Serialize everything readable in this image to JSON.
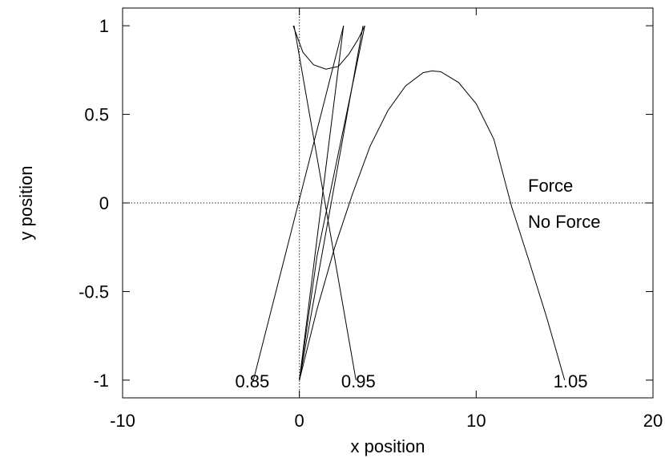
{
  "chart_data": {
    "type": "line",
    "xlabel": "x position",
    "ylabel": "y position",
    "xlim": [
      -10,
      20
    ],
    "ylim": [
      -1.1,
      1.1
    ],
    "x_ticks": [
      -10,
      0,
      10,
      20
    ],
    "x_tick_labels": [
      "-10",
      "0",
      "10",
      "20"
    ],
    "y_ticks": [
      -1,
      -0.5,
      0,
      0.5,
      1
    ],
    "y_tick_labels": [
      "-1",
      "-0.5",
      "0",
      "0.5",
      "1"
    ],
    "zero_axes": true,
    "grid": false,
    "legend": {
      "placement": "right",
      "entries": [
        "Force",
        "No Force"
      ]
    },
    "annotations": [
      {
        "text": "0.85",
        "x": -3.0,
        "y": -1.0
      },
      {
        "text": "0.95",
        "x": 3.0,
        "y": -1.0
      },
      {
        "text": "1.05",
        "x": 15.0,
        "y": -1.0
      }
    ],
    "series": [
      {
        "x": [
          0,
          3.6
        ],
        "y": [
          -1,
          1
        ]
      },
      {
        "x": [
          0,
          2.5
        ],
        "y": [
          -1,
          1
        ]
      },
      {
        "x": [
          -0.3,
          3.2
        ],
        "y": [
          1,
          -1
        ]
      },
      {
        "x": [
          -2.6,
          2.5
        ],
        "y": [
          -1,
          1
        ]
      },
      {
        "x": [
          0,
          1.0,
          3.7
        ],
        "y": [
          -1,
          -0.3,
          1
        ]
      },
      {
        "x": [
          -0.35,
          0.2,
          0.8,
          1.5,
          2.2,
          2.8,
          3.3,
          3.7
        ],
        "y": [
          1,
          0.85,
          0.78,
          0.755,
          0.77,
          0.84,
          0.92,
          1
        ]
      },
      {
        "x": [
          0,
          1,
          2,
          3,
          4,
          5,
          6,
          7,
          7.5,
          8,
          9,
          10,
          11,
          12,
          13,
          14,
          15
        ],
        "y": [
          -1,
          -0.6,
          -0.25,
          0.05,
          0.32,
          0.52,
          0.66,
          0.735,
          0.745,
          0.74,
          0.68,
          0.56,
          0.36,
          -0.02,
          -0.33,
          -0.65,
          -1
        ]
      }
    ]
  }
}
